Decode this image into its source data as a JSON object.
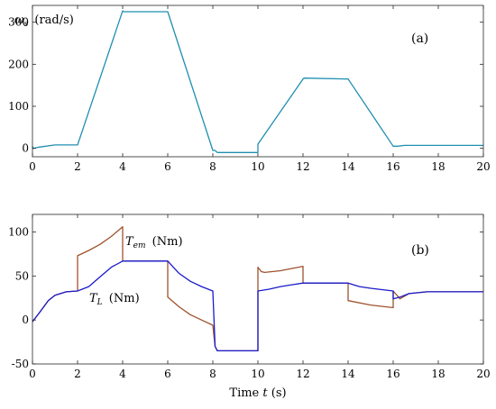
{
  "chart_data": [
    {
      "type": "line",
      "panel_label": "(a)",
      "ylabel_text": "ω",
      "ylabel_sub": "s",
      "ylabel_unit": "(rad/s)",
      "xlim": [
        0,
        20
      ],
      "ylim": [
        -20,
        340
      ],
      "xticks": [
        0,
        2,
        4,
        6,
        8,
        10,
        12,
        14,
        16,
        18,
        20
      ],
      "yticks": [
        0,
        100,
        200,
        300
      ],
      "grid": false,
      "series": [
        {
          "name": "ωs",
          "color": "#1f8fb0",
          "x": [
            0,
            0.02,
            0.3,
            1.0,
            2.0,
            4.0,
            4.05,
            6.0,
            8.0,
            8.1,
            8.2,
            10.0,
            10.0,
            12.0,
            12.05,
            14.0,
            16.0,
            16.2,
            16.5,
            20.0
          ],
          "y": [
            5,
            0,
            3,
            8,
            8,
            327,
            325,
            325,
            -5,
            -5,
            -10,
            -10,
            10,
            165,
            167,
            165,
            5,
            5,
            7,
            7
          ]
        }
      ]
    },
    {
      "type": "line",
      "panel_label": "(b)",
      "xlabel_text": "Time",
      "xlabel_var": "t",
      "xlabel_unit": "(s)",
      "xlim": [
        0,
        20
      ],
      "ylim": [
        -50,
        120
      ],
      "xticks": [
        0,
        2,
        4,
        6,
        8,
        10,
        12,
        14,
        16,
        18,
        20
      ],
      "yticks": [
        -50,
        0,
        50,
        100
      ],
      "grid": false,
      "annotations": [
        {
          "text": "T",
          "sub": "em",
          "unit": "(Nm)"
        },
        {
          "text": "T",
          "sub": "L",
          "unit": "(Nm)"
        }
      ],
      "series": [
        {
          "name": "Tem",
          "color": "#a0522d",
          "x": [
            0,
            0.3,
            0.7,
            1.0,
            1.5,
            2.0,
            2.0,
            2.5,
            3.0,
            3.5,
            4.0,
            4.0,
            5.0,
            6.0,
            6.0,
            6.5,
            7.0,
            7.5,
            8.0,
            8.1,
            8.2,
            10.0,
            10.0,
            10.15,
            10.3,
            11.0,
            12.0,
            12.0,
            13.0,
            14.0,
            14.0,
            15.0,
            16.0,
            16.0,
            16.3,
            16.7,
            17.5,
            20.0
          ],
          "y": [
            -2,
            8,
            22,
            28,
            32,
            33,
            73,
            79,
            86,
            95,
            106,
            67,
            67,
            67,
            26,
            15,
            6,
            0,
            -6,
            -30,
            -35,
            -35,
            60,
            55,
            54,
            56,
            61,
            42,
            42,
            42,
            22,
            17,
            14,
            33,
            24,
            30,
            32,
            32
          ]
        },
        {
          "name": "TL",
          "color": "#1a1acc",
          "x": [
            0,
            0.3,
            0.7,
            1.0,
            1.5,
            2.0,
            2.5,
            3.0,
            3.5,
            4.0,
            5.0,
            6.0,
            6.5,
            7.0,
            7.5,
            8.0,
            8.1,
            8.2,
            10.0,
            10.0,
            10.5,
            11.0,
            11.5,
            12.0,
            13.0,
            14.0,
            14.5,
            15.0,
            16.0,
            16.0,
            16.3,
            16.7,
            17.5,
            20.0
          ],
          "y": [
            -2,
            8,
            22,
            28,
            32,
            33,
            38,
            49,
            60,
            67,
            67,
            67,
            53,
            44,
            38,
            33,
            -30,
            -35,
            -35,
            33,
            35,
            38,
            40,
            42,
            42,
            42,
            38,
            36,
            33,
            24,
            26,
            30,
            32,
            32
          ]
        }
      ]
    }
  ]
}
